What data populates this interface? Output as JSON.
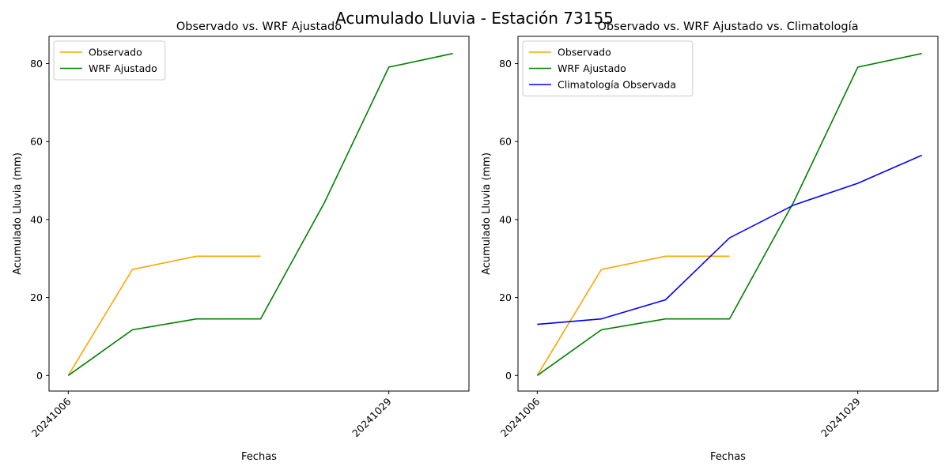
{
  "figure": {
    "title": "Acumulado Lluvia - Estación 73155"
  },
  "colors": {
    "observed": "#FFA500",
    "wrf": "#008000",
    "clim": "#0000FF"
  },
  "chart_data": [
    {
      "type": "line",
      "title": "Observado vs. WRF Ajustado",
      "xlabel": "Fechas",
      "ylabel": "Acumulado Lluvia (mm)",
      "x_tick_labels": [
        "20241006",
        "20241029"
      ],
      "yticks": [
        0,
        20,
        40,
        60,
        80
      ],
      "ylim": [
        -4,
        87
      ],
      "grid": false,
      "legend": "top-left",
      "series": [
        {
          "name": "Observado",
          "color": "observed",
          "y": [
            0,
            27.2,
            30.6,
            30.6
          ]
        },
        {
          "name": "WRF Ajustado",
          "color": "wrf",
          "y": [
            0,
            11.7,
            14.5,
            14.5,
            44.5,
            79.1,
            82.6
          ]
        }
      ]
    },
    {
      "type": "line",
      "title": "Observado vs. WRF Ajustado vs. Climatología",
      "xlabel": "Fechas",
      "ylabel": "Acumulado Lluvia (mm)",
      "x_tick_labels": [
        "20241006",
        "20241029"
      ],
      "yticks": [
        0,
        20,
        40,
        60,
        80
      ],
      "ylim": [
        -4,
        87
      ],
      "grid": false,
      "legend": "top-left",
      "series": [
        {
          "name": "Observado",
          "color": "observed",
          "y": [
            0,
            27.2,
            30.6,
            30.6
          ]
        },
        {
          "name": "WRF Ajustado",
          "color": "wrf",
          "y": [
            0,
            11.7,
            14.5,
            14.5,
            44.5,
            79.1,
            82.6
          ]
        },
        {
          "name": "Climatología Observada",
          "color": "clim",
          "y": [
            13.1,
            14.5,
            19.4,
            35.3,
            43.7,
            49.3,
            56.5
          ]
        }
      ]
    }
  ]
}
